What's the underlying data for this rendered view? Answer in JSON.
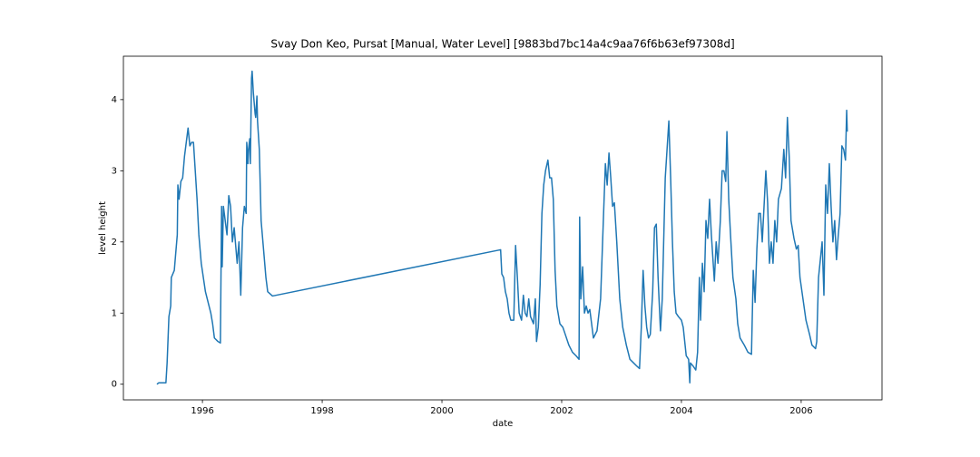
{
  "chart_data": {
    "type": "line",
    "title": "Svay Don Keo, Pursat [Manual, Water Level] [9883bd7bc14a4c9aa76f6b63ef97308d]",
    "xlabel": "date",
    "ylabel": "level height",
    "color": "#1f77b4",
    "xlim": [
      1994.68,
      2007.35
    ],
    "ylim": [
      -0.22,
      4.61
    ],
    "xticks": [
      1996,
      1998,
      2000,
      2002,
      2004,
      2006
    ],
    "yticks": [
      0,
      1,
      2,
      3,
      4
    ],
    "x": [
      1995.24,
      1995.27,
      1995.39,
      1995.41,
      1995.44,
      1995.47,
      1995.48,
      1995.53,
      1995.55,
      1995.58,
      1995.59,
      1995.61,
      1995.64,
      1995.67,
      1995.7,
      1995.76,
      1995.79,
      1995.82,
      1995.85,
      1995.88,
      1995.91,
      1995.94,
      1995.98,
      1996.05,
      1996.11,
      1996.14,
      1996.17,
      1996.2,
      1996.26,
      1996.3,
      1996.32,
      1996.33,
      1996.35,
      1996.38,
      1996.41,
      1996.44,
      1996.47,
      1996.5,
      1996.53,
      1996.58,
      1996.61,
      1996.64,
      1996.67,
      1996.7,
      1996.73,
      1996.74,
      1996.76,
      1996.77,
      1996.79,
      1996.8,
      1996.82,
      1996.83,
      1996.85,
      1996.88,
      1996.89,
      1996.91,
      1996.92,
      1996.95,
      1996.98,
      1997.03,
      1997.06,
      1997.09,
      1997.17,
      2000.98,
      2001.0,
      2001.03,
      2001.06,
      2001.09,
      2001.12,
      2001.15,
      2001.2,
      2001.23,
      2001.26,
      2001.29,
      2001.33,
      2001.36,
      2001.39,
      2001.42,
      2001.45,
      2001.48,
      2001.53,
      2001.56,
      2001.58,
      2001.61,
      2001.64,
      2001.67,
      2001.7,
      2001.73,
      2001.77,
      2001.8,
      2001.83,
      2001.86,
      2001.89,
      2001.92,
      2001.97,
      2002.02,
      2002.06,
      2002.12,
      2002.18,
      2002.24,
      2002.29,
      2002.3,
      2002.32,
      2002.35,
      2002.38,
      2002.41,
      2002.44,
      2002.47,
      2002.5,
      2002.53,
      2002.56,
      2002.59,
      2002.65,
      2002.7,
      2002.73,
      2002.76,
      2002.79,
      2002.82,
      2002.85,
      2002.88,
      2002.92,
      2002.97,
      2003.02,
      2003.08,
      2003.14,
      2003.2,
      2003.26,
      2003.3,
      2003.33,
      2003.36,
      2003.39,
      2003.42,
      2003.45,
      2003.48,
      2003.52,
      2003.55,
      2003.58,
      2003.61,
      2003.65,
      2003.68,
      2003.73,
      2003.76,
      2003.79,
      2003.82,
      2003.85,
      2003.88,
      2003.91,
      2003.95,
      2004.0,
      2004.03,
      2004.08,
      2004.12,
      2004.14,
      2004.15,
      2004.2,
      2004.24,
      2004.27,
      2004.3,
      2004.32,
      2004.35,
      2004.38,
      2004.41,
      2004.44,
      2004.47,
      2004.5,
      2004.55,
      2004.58,
      2004.61,
      2004.65,
      2004.68,
      2004.71,
      2004.74,
      2004.76,
      2004.79,
      2004.82,
      2004.86,
      2004.91,
      2004.94,
      2004.98,
      2005.05,
      2005.11,
      2005.17,
      2005.2,
      2005.23,
      2005.26,
      2005.29,
      2005.32,
      2005.35,
      2005.38,
      2005.41,
      2005.44,
      2005.47,
      2005.5,
      2005.53,
      2005.56,
      2005.59,
      2005.62,
      2005.67,
      2005.71,
      2005.74,
      2005.77,
      2005.8,
      2005.83,
      2005.88,
      2005.92,
      2005.95,
      2005.98,
      2006.03,
      2006.08,
      2006.14,
      2006.18,
      2006.24,
      2006.26,
      2006.29,
      2006.32,
      2006.35,
      2006.38,
      2006.41,
      2006.44,
      2006.47,
      2006.5,
      2006.53,
      2006.56,
      2006.59,
      2006.62,
      2006.65,
      2006.68,
      2006.71,
      2006.74,
      2006.76,
      2006.77
    ],
    "values": [
      0.0,
      0.02,
      0.02,
      0.3,
      0.95,
      1.1,
      1.5,
      1.6,
      1.8,
      2.1,
      2.8,
      2.6,
      2.85,
      2.9,
      3.2,
      3.6,
      3.35,
      3.4,
      3.4,
      3.0,
      2.6,
      2.1,
      1.7,
      1.3,
      1.1,
      1.0,
      0.85,
      0.65,
      0.6,
      0.58,
      2.5,
      1.65,
      2.5,
      2.3,
      2.1,
      2.65,
      2.5,
      2.0,
      2.2,
      1.7,
      2.0,
      1.25,
      2.2,
      2.5,
      2.4,
      3.4,
      3.1,
      3.3,
      3.45,
      3.1,
      4.3,
      4.4,
      4.1,
      3.8,
      3.75,
      4.05,
      3.7,
      3.3,
      2.3,
      1.8,
      1.5,
      1.3,
      1.24,
      1.89,
      1.55,
      1.5,
      1.3,
      1.2,
      1.0,
      0.9,
      0.9,
      1.95,
      1.5,
      1.0,
      0.9,
      1.25,
      1.0,
      0.95,
      1.2,
      0.95,
      0.85,
      1.2,
      0.6,
      0.8,
      1.4,
      2.4,
      2.8,
      3.0,
      3.15,
      2.9,
      2.9,
      2.6,
      1.6,
      1.1,
      0.85,
      0.8,
      0.7,
      0.55,
      0.45,
      0.4,
      0.35,
      2.35,
      1.2,
      1.65,
      1.0,
      1.1,
      1.0,
      1.05,
      0.85,
      0.65,
      0.7,
      0.75,
      1.2,
      2.4,
      3.1,
      2.8,
      3.25,
      2.9,
      2.5,
      2.55,
      2.0,
      1.2,
      0.8,
      0.55,
      0.35,
      0.3,
      0.25,
      0.22,
      0.8,
      1.6,
      1.1,
      0.8,
      0.65,
      0.7,
      1.3,
      2.2,
      2.25,
      1.5,
      0.75,
      1.2,
      2.9,
      3.3,
      3.7,
      2.9,
      2.0,
      1.3,
      1.0,
      0.95,
      0.9,
      0.8,
      0.4,
      0.35,
      0.02,
      0.3,
      0.25,
      0.2,
      0.45,
      1.5,
      0.9,
      1.7,
      1.3,
      2.3,
      2.05,
      2.6,
      2.1,
      1.45,
      2.0,
      1.7,
      2.3,
      3.0,
      3.0,
      2.85,
      3.55,
      2.6,
      2.1,
      1.5,
      1.2,
      0.85,
      0.65,
      0.55,
      0.45,
      0.42,
      1.6,
      1.15,
      1.9,
      2.4,
      2.4,
      2.0,
      2.5,
      3.0,
      2.55,
      1.7,
      2.0,
      1.7,
      2.3,
      2.0,
      2.6,
      2.75,
      3.3,
      2.9,
      3.75,
      3.2,
      2.3,
      2.05,
      1.9,
      1.95,
      1.5,
      1.2,
      0.9,
      0.7,
      0.55,
      0.5,
      0.6,
      1.5,
      1.75,
      2.0,
      1.25,
      2.8,
      2.4,
      3.1,
      2.5,
      2.0,
      2.3,
      1.75,
      2.1,
      2.4,
      3.35,
      3.3,
      3.15,
      3.85,
      3.55
    ]
  }
}
